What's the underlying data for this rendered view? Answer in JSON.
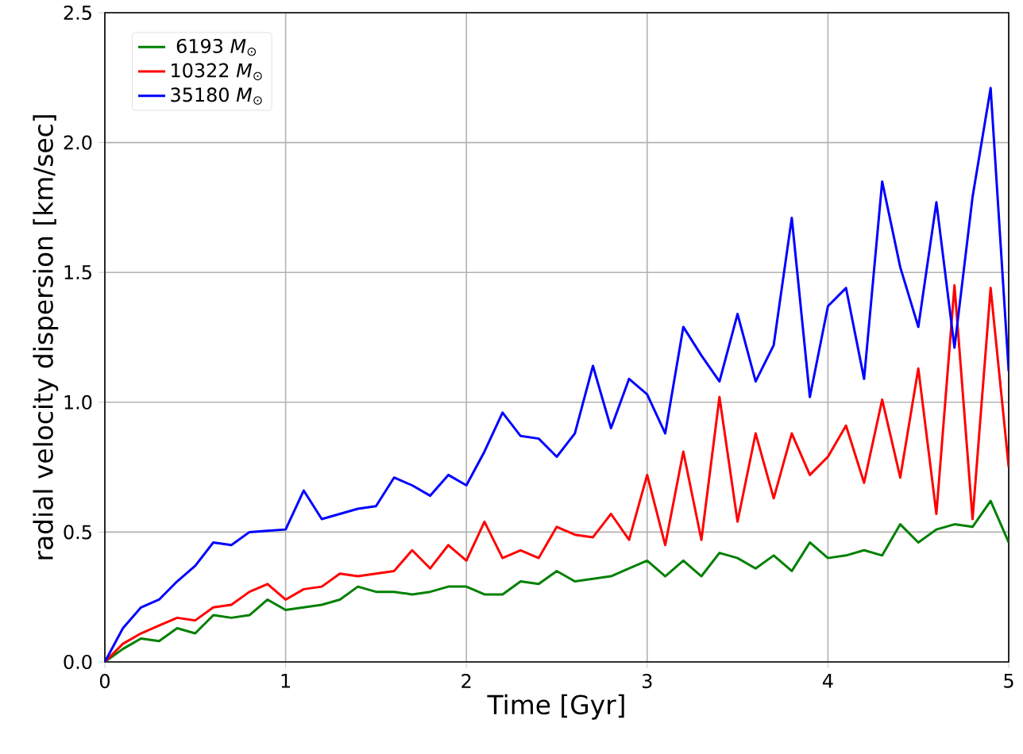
{
  "chart_data": {
    "type": "line",
    "xlabel": "Time [Gyr]",
    "ylabel": "radial velocity dispersion [km/sec]",
    "x": [
      0,
      0.1,
      0.2,
      0.3,
      0.4,
      0.5,
      0.6,
      0.7,
      0.8,
      0.9,
      1.0,
      1.1,
      1.2,
      1.3,
      1.4,
      1.5,
      1.6,
      1.7,
      1.8,
      1.9,
      2.0,
      2.1,
      2.2,
      2.3,
      2.4,
      2.5,
      2.6,
      2.7,
      2.8,
      2.9,
      3.0,
      3.1,
      3.2,
      3.3,
      3.4,
      3.5,
      3.6,
      3.7,
      3.8,
      3.9,
      4.0,
      4.1,
      4.2,
      4.3,
      4.4,
      4.5,
      4.6,
      4.7,
      4.8,
      4.9,
      5.0
    ],
    "series": [
      {
        "name": " 6193 *M*$_{⊙}$",
        "color": "#008000",
        "values": [
          0,
          0.05,
          0.09,
          0.08,
          0.13,
          0.11,
          0.18,
          0.17,
          0.18,
          0.24,
          0.2,
          0.21,
          0.22,
          0.24,
          0.29,
          0.27,
          0.27,
          0.26,
          0.27,
          0.29,
          0.29,
          0.26,
          0.26,
          0.31,
          0.3,
          0.35,
          0.31,
          0.32,
          0.33,
          0.36,
          0.39,
          0.33,
          0.39,
          0.33,
          0.42,
          0.4,
          0.36,
          0.41,
          0.35,
          0.46,
          0.4,
          0.41,
          0.43,
          0.41,
          0.53,
          0.46,
          0.51,
          0.53,
          0.52,
          0.62,
          0.46
        ]
      },
      {
        "name": "10322 *M*$_{⊙}$",
        "color": "#ff0000",
        "values": [
          0,
          0.07,
          0.11,
          0.14,
          0.17,
          0.16,
          0.21,
          0.22,
          0.27,
          0.3,
          0.24,
          0.28,
          0.29,
          0.34,
          0.33,
          0.34,
          0.35,
          0.43,
          0.36,
          0.45,
          0.39,
          0.54,
          0.4,
          0.43,
          0.4,
          0.52,
          0.49,
          0.48,
          0.57,
          0.47,
          0.72,
          0.45,
          0.81,
          0.47,
          1.02,
          0.54,
          0.88,
          0.63,
          0.88,
          0.72,
          0.79,
          0.91,
          0.69,
          1.01,
          0.71,
          1.13,
          0.57,
          1.45,
          0.55,
          1.44,
          0.75
        ]
      },
      {
        "name": "35180 *M*$_{⊙}$",
        "color": "#0000ff",
        "values": [
          0,
          0.13,
          0.21,
          0.24,
          0.31,
          0.37,
          0.46,
          0.45,
          0.5,
          0.505,
          0.51,
          0.66,
          0.55,
          0.57,
          0.59,
          0.6,
          0.71,
          0.68,
          0.64,
          0.72,
          0.68,
          0.81,
          0.96,
          0.87,
          0.86,
          0.79,
          0.88,
          1.14,
          0.9,
          1.09,
          1.03,
          0.88,
          1.29,
          1.18,
          1.08,
          1.34,
          1.08,
          1.22,
          1.71,
          1.02,
          1.37,
          1.44,
          1.09,
          1.85,
          1.52,
          1.29,
          1.77,
          1.21,
          1.79,
          2.21,
          1.12
        ]
      }
    ],
    "xlim": [
      0,
      5
    ],
    "ylim": [
      0,
      2.5
    ],
    "xticks": [
      0,
      1,
      2,
      3,
      4,
      5
    ],
    "yticks": [
      {
        "value": 0,
        "label": "0.0"
      },
      {
        "value": 0.5,
        "label": "0.5"
      },
      {
        "value": 1,
        "label": "1.0"
      },
      {
        "value": 1.5,
        "label": "1.5"
      },
      {
        "value": 2,
        "label": "2.0"
      },
      {
        "value": 2.5,
        "label": "2.5"
      }
    ],
    "grid": true,
    "legend": "top left"
  }
}
